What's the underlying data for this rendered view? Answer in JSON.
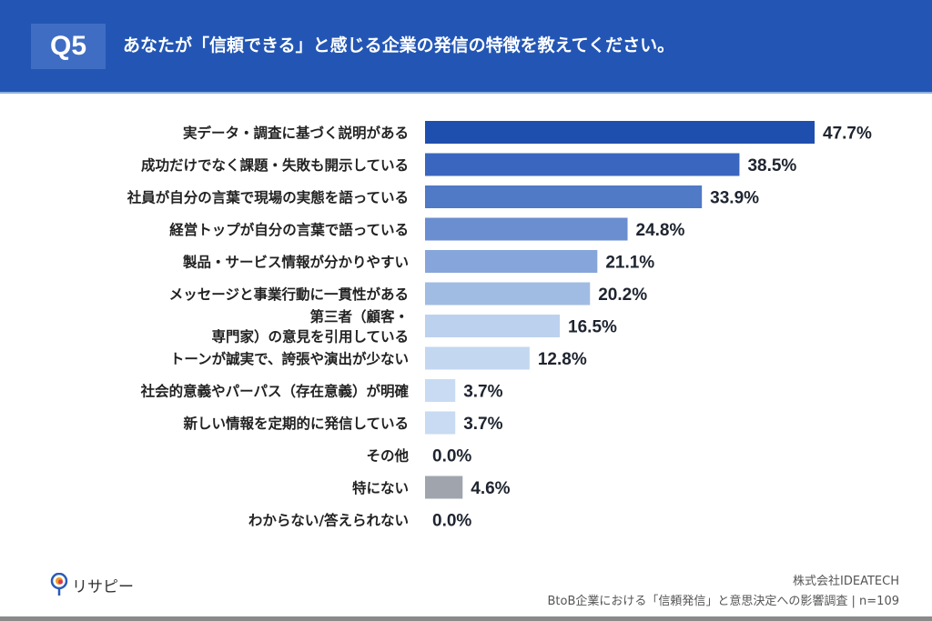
{
  "header": {
    "q_label": "Q5",
    "title": "あなたが「信頼できる」と感じる企業の発信の特徴を教えてください。"
  },
  "chart_data": {
    "type": "bar",
    "orientation": "horizontal",
    "title": "あなたが「信頼できる」と感じる企業の発信の特徴を教えてください。",
    "categories": [
      "実データ・調査に基づく説明がある",
      "成功だけでなく課題・失敗も開示している",
      "社員が自分の言葉で現場の実態を語っている",
      "経営トップが自分の言葉で語っている",
      "製品・サービス情報が分かりやすい",
      "メッセージと事業行動に一貫性がある",
      "第三者（顧客・\n専門家）の意見を引用している",
      "トーンが誠実で、誇張や演出が少ない",
      "社会的意義やパーパス（存在意義）が明確",
      "新しい情報を定期的に発信している",
      "その他",
      "特にない",
      "わからない/答えられない"
    ],
    "values": [
      47.7,
      38.5,
      33.9,
      24.8,
      21.1,
      20.2,
      16.5,
      12.8,
      3.7,
      3.7,
      0.0,
      4.6,
      0.0
    ],
    "value_labels": [
      "47.7%",
      "38.5%",
      "33.9%",
      "24.8%",
      "21.1%",
      "20.2%",
      "16.5%",
      "12.8%",
      "3.7%",
      "3.7%",
      "0.0%",
      "4.6%",
      "0.0%"
    ],
    "colors": [
      "#1f4fae",
      "#3a66bf",
      "#5079c6",
      "#6a8ed0",
      "#86a5da",
      "#a1bce3",
      "#bcd1ee",
      "#c3d7f1",
      "#c8dbf2",
      "#c8dbf2",
      "#c8dbf2",
      "#a0a4ad",
      "#c8dbf2"
    ],
    "unit": "%",
    "xlim": [
      0,
      50
    ],
    "grid": false,
    "legend": "none"
  },
  "footer": {
    "logo_text": "リサピー",
    "company": "株式会社IDEATECH",
    "survey": "BtoB企業における「信頼発信」と意思決定への影響調査 | n=109"
  }
}
